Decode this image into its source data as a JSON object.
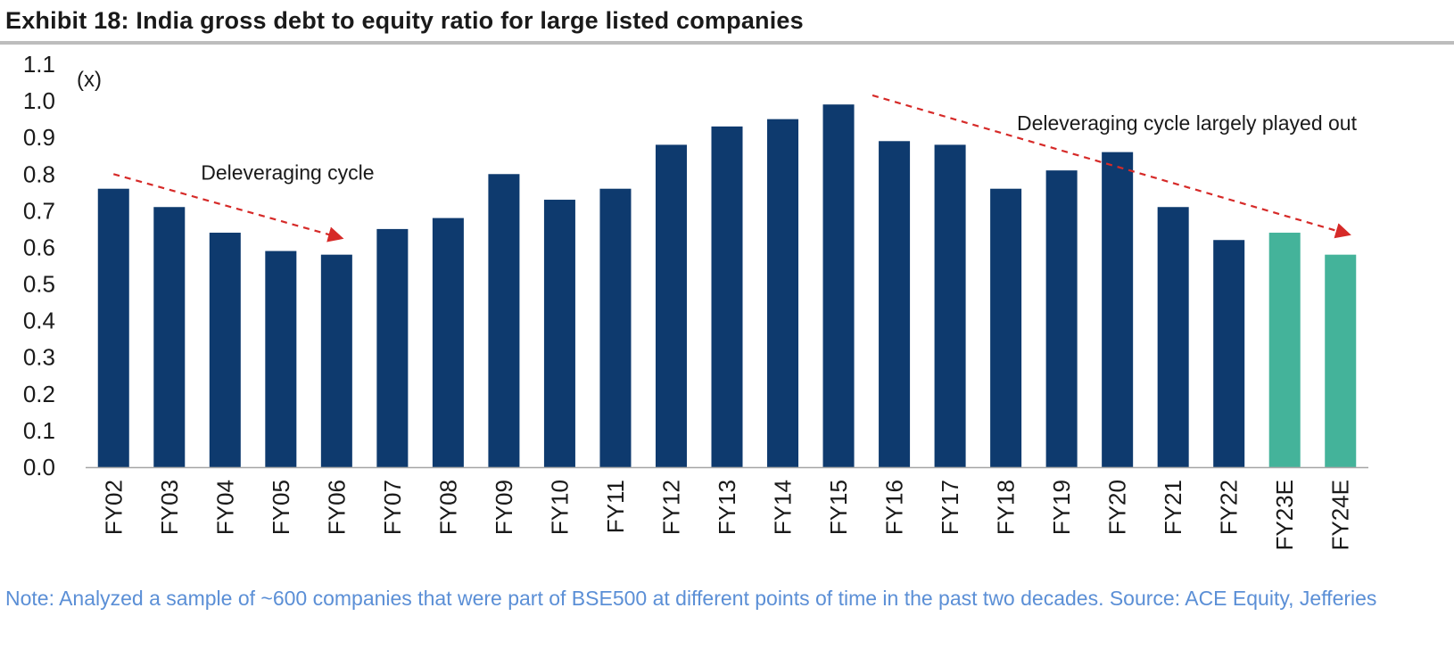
{
  "title": "Exhibit 18: India gross debt to equity ratio for large listed companies",
  "note": "Note: Analyzed a sample of ~600 companies that were part of BSE500 at different points of time in the past two decades. Source: ACE Equity, Jefferies",
  "chart_data": {
    "type": "bar",
    "title": "",
    "unit_label": "(x)",
    "ylim": [
      0,
      1.1
    ],
    "yticks": [
      "0.0",
      "0.1",
      "0.2",
      "0.3",
      "0.4",
      "0.5",
      "0.6",
      "0.7",
      "0.8",
      "0.9",
      "1.0",
      "1.1"
    ],
    "categories": [
      "FY02",
      "FY03",
      "FY04",
      "FY05",
      "FY06",
      "FY07",
      "FY08",
      "FY09",
      "FY10",
      "FY11",
      "FY12",
      "FY13",
      "FY14",
      "FY15",
      "FY16",
      "FY17",
      "FY18",
      "FY19",
      "FY20",
      "FY21",
      "FY22",
      "FY23E",
      "FY24E"
    ],
    "values": [
      0.76,
      0.71,
      0.64,
      0.59,
      0.58,
      0.65,
      0.68,
      0.8,
      0.73,
      0.76,
      0.88,
      0.93,
      0.95,
      0.99,
      0.89,
      0.88,
      0.76,
      0.81,
      0.86,
      0.71,
      0.62,
      0.64,
      0.58
    ],
    "grid": false,
    "colors": {
      "actual": "#0e3a6e",
      "estimate": "#44b39a",
      "arrow": "#d62a28"
    },
    "estimate_categories": [
      "FY23E",
      "FY24E"
    ],
    "annotations": [
      {
        "text": "Deleveraging cycle",
        "arrow_from": "FY02",
        "arrow_to": "FY06"
      },
      {
        "text": "Deleveraging cycle largely played out",
        "arrow_from": "FY15",
        "arrow_to": "FY24E"
      }
    ]
  }
}
